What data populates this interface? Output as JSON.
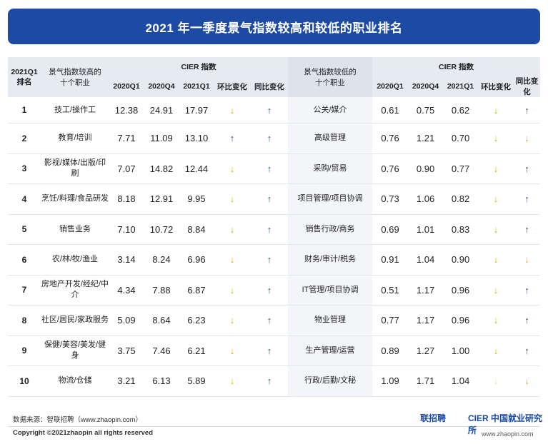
{
  "title": "2021 年一季度景气指数较高和较低的职业排名",
  "headers": {
    "rank": "2021Q1\n排名",
    "high_jobs": "景气指数较高的\n十个职业",
    "cier_index": "CIER 指数",
    "low_jobs": "景气指数较低的\n十个职业",
    "q2020q1": "2020Q1",
    "q2020q4": "2020Q4",
    "q2021q1": "2021Q1",
    "qoq": "环比变化",
    "yoy": "同比变化"
  },
  "rows": [
    {
      "rank": "1",
      "high_job": "技工/操作工",
      "h20q1": "12.38",
      "h20q4": "24.91",
      "h21q1": "17.97",
      "h_qoq": "down",
      "h_yoy": "up",
      "low_job": "公关/媒介",
      "l20q1": "0.61",
      "l20q4": "0.75",
      "l21q1": "0.62",
      "l_qoq": "down",
      "l_yoy": "up"
    },
    {
      "rank": "2",
      "high_job": "教育/培训",
      "h20q1": "7.71",
      "h20q4": "11.09",
      "h21q1": "13.10",
      "h_qoq": "up",
      "h_yoy": "up",
      "low_job": "高级管理",
      "l20q1": "0.76",
      "l20q4": "1.21",
      "l21q1": "0.70",
      "l_qoq": "down",
      "l_yoy": "down"
    },
    {
      "rank": "3",
      "high_job": "影视/媒体/出版/印刷",
      "h20q1": "7.07",
      "h20q4": "14.82",
      "h21q1": "12.44",
      "h_qoq": "down",
      "h_yoy": "up",
      "low_job": "采购/贸易",
      "l20q1": "0.76",
      "l20q4": "0.90",
      "l21q1": "0.77",
      "l_qoq": "down",
      "l_yoy": "up"
    },
    {
      "rank": "4",
      "high_job": "烹饪/料理/食品研发",
      "h20q1": "8.18",
      "h20q4": "12.91",
      "h21q1": "9.95",
      "h_qoq": "down",
      "h_yoy": "up",
      "low_job": "项目管理/项目协调",
      "l20q1": "0.73",
      "l20q4": "1.06",
      "l21q1": "0.82",
      "l_qoq": "down",
      "l_yoy": "up"
    },
    {
      "rank": "5",
      "high_job": "销售业务",
      "h20q1": "7.10",
      "h20q4": "10.72",
      "h21q1": "8.84",
      "h_qoq": "down",
      "h_yoy": "up",
      "low_job": "销售行政/商务",
      "l20q1": "0.69",
      "l20q4": "1.01",
      "l21q1": "0.83",
      "l_qoq": "down",
      "l_yoy": "up"
    },
    {
      "rank": "6",
      "high_job": "农/林/牧/渔业",
      "h20q1": "3.14",
      "h20q4": "8.24",
      "h21q1": "6.96",
      "h_qoq": "down",
      "h_yoy": "up",
      "low_job": "财务/审计/税务",
      "l20q1": "0.91",
      "l20q4": "1.04",
      "l21q1": "0.90",
      "l_qoq": "down",
      "l_yoy": "down"
    },
    {
      "rank": "7",
      "high_job": "房地产开发/经纪/中介",
      "h20q1": "4.34",
      "h20q4": "7.88",
      "h21q1": "6.87",
      "h_qoq": "down",
      "h_yoy": "up",
      "low_job": "IT管理/项目协调",
      "l20q1": "0.51",
      "l20q4": "1.17",
      "l21q1": "0.96",
      "l_qoq": "down",
      "l_yoy": "up"
    },
    {
      "rank": "8",
      "high_job": "社区/居民/家政服务",
      "h20q1": "5.09",
      "h20q4": "8.64",
      "h21q1": "6.23",
      "h_qoq": "down",
      "h_yoy": "up",
      "low_job": "物业管理",
      "l20q1": "0.77",
      "l20q4": "1.17",
      "l21q1": "0.96",
      "l_qoq": "down",
      "l_yoy": "up"
    },
    {
      "rank": "9",
      "high_job": "保健/美容/美发/健身",
      "h20q1": "3.75",
      "h20q4": "7.46",
      "h21q1": "6.21",
      "h_qoq": "down",
      "h_yoy": "up",
      "low_job": "生产管理/运营",
      "l20q1": "0.89",
      "l20q4": "1.27",
      "l21q1": "1.00",
      "l_qoq": "down",
      "l_yoy": "up"
    },
    {
      "rank": "10",
      "high_job": "物流/仓储",
      "h20q1": "3.21",
      "h20q4": "6.13",
      "h21q1": "5.89",
      "h_qoq": "down",
      "h_yoy": "up",
      "low_job": "行政/后勤/文秘",
      "l20q1": "1.09",
      "l20q4": "1.71",
      "l21q1": "1.04",
      "l_qoq": "down",
      "l_yoy": "down"
    }
  ],
  "arrow_glyphs": {
    "up": "↑",
    "down": "↓"
  },
  "colors": {
    "header_bar": "#1d4aa3",
    "arrow_up": "#1d4aa3",
    "arrow_down": "#e9a800"
  },
  "footer": {
    "source": "数据来源：智联招聘（www.zhaopin.com）",
    "copyright": "Copyright ©2021zhaopin all rights reserved",
    "logo_zhaopin": "联招聘",
    "logo_cier": "CIER 中国就业研究所",
    "site": "www.zhaopin.com"
  }
}
